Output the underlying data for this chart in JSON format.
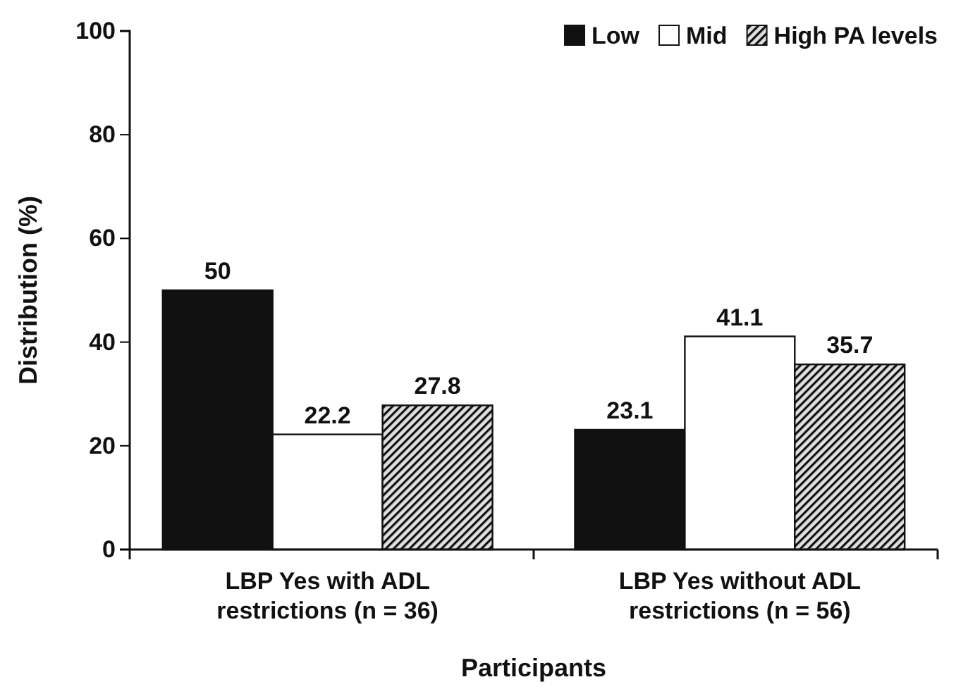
{
  "chart_data": {
    "type": "bar",
    "xlabel": "Participants",
    "ylabel": "Distribution (%)",
    "categories": [
      "LBP Yes with ADL restrictions (n = 36)",
      "LBP Yes without ADL restrictions (n = 56)"
    ],
    "series": [
      {
        "name": "Low",
        "color": "#111111",
        "values": [
          50,
          23.1
        ]
      },
      {
        "name": "Mid",
        "color": "#ffffff",
        "values": [
          22.2,
          41.1
        ]
      },
      {
        "name": "High PA levels",
        "color": "#111111",
        "values": [
          27.8,
          35.7
        ]
      }
    ],
    "ylim": [
      0,
      100
    ],
    "yticks": [
      0,
      20,
      40,
      60,
      80,
      100
    ],
    "legend": "top right",
    "data_labels": true
  }
}
